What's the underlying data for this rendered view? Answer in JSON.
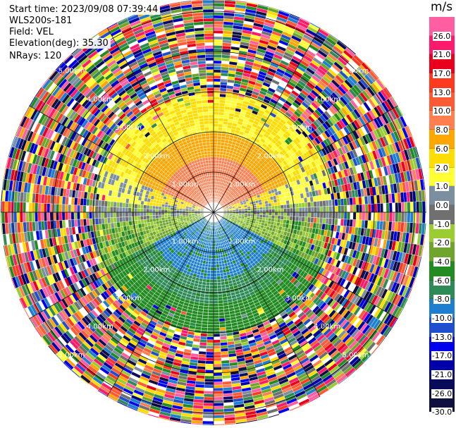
{
  "header": {
    "start_time": "Start time: 2023/09/08 07:39:44",
    "instrument": "WLS200s-181",
    "field": "Field: VEL",
    "elevation": "Elevation(deg): 35.30",
    "nrays": "NRays: 120"
  },
  "chart_data": {
    "type": "heatmap",
    "projection": "polar-ppi",
    "field": "VEL",
    "unit": "m/s",
    "nrays": 120,
    "range_rings_km": [
      1.0,
      2.0,
      3.0,
      4.0,
      5.0
    ],
    "range_ring_labels": [
      "1.00km",
      "2.00km",
      "3.00km",
      "4.00km",
      "5.00km"
    ],
    "max_range_km": 5.3,
    "colorbar": {
      "title": "m/s",
      "tick_labels": [
        "26.0",
        "21.0",
        "17.0",
        "13.0",
        "10.0",
        "8.0",
        "6.0",
        "2.0",
        "1.0",
        "0.0",
        "-1.0",
        "-2.0",
        "-4.0",
        "-6.0",
        "-8.0",
        "-10.0",
        "-13.0",
        "-17.0",
        "-21.0",
        "-26.0",
        "-30.0"
      ],
      "bin_colors": [
        "#ff5fa0",
        "#ff1a6b",
        "#e8001c",
        "#fd3a20",
        "#ff5a36",
        "#ff7f50",
        "#ffa600",
        "#ffdd00",
        "#ffff33",
        "#7b8fa0",
        "#707070",
        "#9acd32",
        "#6fa52d",
        "#228b22",
        "#2e8b57",
        "#1e7fd0",
        "#1f4fcf",
        "#0000ee",
        "#0000aa",
        "#0a0a5a",
        "#101040"
      ]
    },
    "pattern_note_free": true
  }
}
